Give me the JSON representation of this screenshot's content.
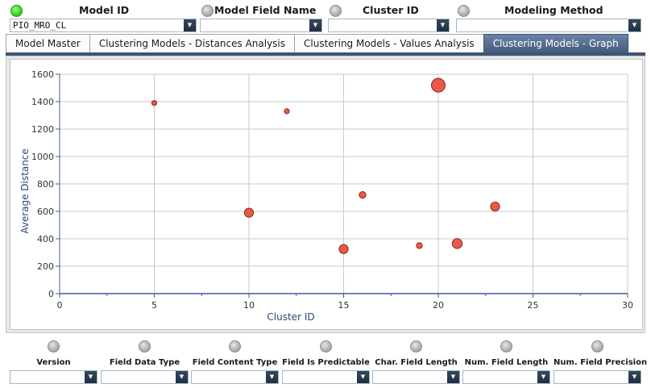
{
  "filters": {
    "model_id": {
      "label": "Model ID",
      "value": "PIO_MRO_CL",
      "status_color": "#2ed11a"
    },
    "model_field_name": {
      "label": "Model Field Name",
      "value": ""
    },
    "cluster_id": {
      "label": "Cluster ID",
      "value": ""
    },
    "modeling_method": {
      "label": "Modeling Method",
      "value": ""
    }
  },
  "icons": {
    "dropdown": "▼",
    "status_dot": "status-dot-icon"
  },
  "tabs": [
    {
      "label": "Model Master",
      "active": false
    },
    {
      "label": "Clustering Models - Distances Analysis",
      "active": false
    },
    {
      "label": "Clustering Models - Values Analysis",
      "active": false
    },
    {
      "label": "Clustering Models - Graph",
      "active": true
    }
  ],
  "chart_data": {
    "type": "scatter",
    "title": "",
    "xlabel": "Cluster ID",
    "ylabel": "Average Distance",
    "xlim": [
      0,
      30
    ],
    "ylim": [
      0,
      1600
    ],
    "x_ticks": [
      0,
      5,
      10,
      15,
      20,
      25,
      30
    ],
    "y_ticks": [
      0,
      200,
      400,
      600,
      800,
      1000,
      1200,
      1400,
      1600
    ],
    "grid": true,
    "point_color": "#e8594a",
    "points": [
      {
        "x": 5,
        "y": 1390,
        "size": 1
      },
      {
        "x": 10,
        "y": 590,
        "size": 4
      },
      {
        "x": 12,
        "y": 1330,
        "size": 1
      },
      {
        "x": 15,
        "y": 325,
        "size": 4
      },
      {
        "x": 16,
        "y": 720,
        "size": 2
      },
      {
        "x": 19,
        "y": 350,
        "size": 1.5
      },
      {
        "x": 20,
        "y": 1520,
        "size": 10
      },
      {
        "x": 21,
        "y": 365,
        "size": 5
      },
      {
        "x": 23,
        "y": 635,
        "size": 4
      }
    ]
  },
  "bottom_filters": [
    {
      "label": "Version",
      "value": ""
    },
    {
      "label": "Field Data Type",
      "value": ""
    },
    {
      "label": "Field Content Type",
      "value": ""
    },
    {
      "label": "Field Is Predictable",
      "value": ""
    },
    {
      "label": "Char. Field Length",
      "value": ""
    },
    {
      "label": "Num. Field Length",
      "value": ""
    },
    {
      "label": "Num. Field Precision",
      "value": ""
    }
  ]
}
